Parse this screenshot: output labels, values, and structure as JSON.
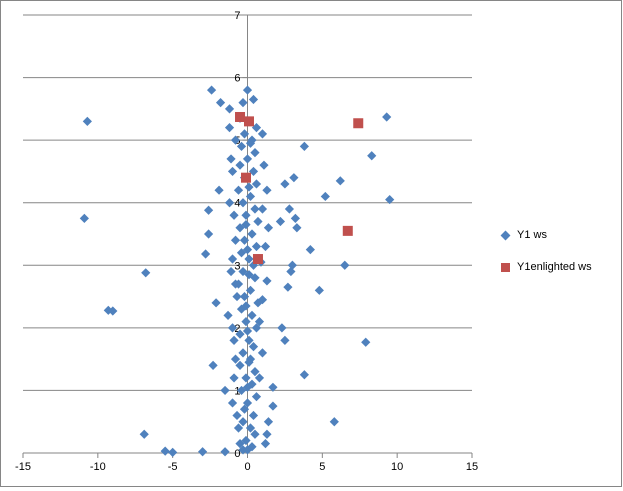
{
  "chart_data": {
    "type": "scatter",
    "title": "",
    "xlabel": "",
    "ylabel": "",
    "xlim": [
      -15,
      15
    ],
    "ylim": [
      0,
      7
    ],
    "x_ticks": [
      "-15",
      "-10",
      "-5",
      "0",
      "5",
      "10",
      "15"
    ],
    "y_ticks": [
      "0",
      "1",
      "2",
      "3",
      "4",
      "5",
      "6",
      "7"
    ],
    "grid": "horizontal major gridlines",
    "legend_position": "right",
    "series": [
      {
        "name": "Y1   ws",
        "marker": "diamond",
        "color": "#4f81bd",
        "points": [
          [
            -10.7,
            5.3
          ],
          [
            -10.9,
            3.75
          ],
          [
            -6.8,
            2.88
          ],
          [
            -9.3,
            2.28
          ],
          [
            -9.0,
            2.27
          ],
          [
            -6.9,
            0.3
          ],
          [
            -5.5,
            0.03
          ],
          [
            -5.0,
            0.01
          ],
          [
            -3.0,
            0.02
          ],
          [
            -1.5,
            0.02
          ],
          [
            -2.4,
            5.8
          ],
          [
            -2.6,
            3.88
          ],
          [
            -2.6,
            3.5
          ],
          [
            -2.8,
            3.18
          ],
          [
            -2.1,
            2.4
          ],
          [
            -2.3,
            1.4
          ],
          [
            -1.5,
            1.0
          ],
          [
            -1.9,
            4.2
          ],
          [
            -1.2,
            5.2
          ],
          [
            -1.8,
            5.6
          ],
          [
            -1.0,
            4.5
          ],
          [
            -0.9,
            3.8
          ],
          [
            -1.0,
            3.1
          ],
          [
            -0.8,
            2.7
          ],
          [
            -1.3,
            2.2
          ],
          [
            -0.9,
            1.8
          ],
          [
            -1.0,
            0.8
          ],
          [
            -0.6,
            0.4
          ],
          [
            -0.5,
            0.15
          ],
          [
            -0.3,
            0.05
          ],
          [
            3.8,
            4.9
          ],
          [
            3.1,
            4.4
          ],
          [
            2.5,
            4.3
          ],
          [
            2.8,
            3.9
          ],
          [
            3.2,
            3.75
          ],
          [
            2.2,
            3.7
          ],
          [
            3.3,
            3.6
          ],
          [
            4.2,
            3.25
          ],
          [
            3.0,
            3.0
          ],
          [
            2.9,
            2.9
          ],
          [
            2.7,
            2.65
          ],
          [
            4.8,
            2.6
          ],
          [
            2.3,
            2.0
          ],
          [
            2.5,
            1.8
          ],
          [
            3.8,
            1.25
          ],
          [
            1.7,
            1.05
          ],
          [
            1.7,
            0.75
          ],
          [
            1.4,
            0.5
          ],
          [
            1.3,
            0.3
          ],
          [
            1.2,
            0.15
          ],
          [
            6.2,
            4.35
          ],
          [
            5.2,
            4.1
          ],
          [
            6.5,
            3.0
          ],
          [
            8.3,
            4.75
          ],
          [
            9.3,
            5.37
          ],
          [
            9.5,
            4.05
          ],
          [
            7.9,
            1.77
          ],
          [
            5.8,
            0.5
          ],
          [
            0.0,
            5.8
          ],
          [
            -0.3,
            5.6
          ],
          [
            0.4,
            5.65
          ],
          [
            -0.5,
            5.35
          ],
          [
            0.6,
            5.2
          ],
          [
            -0.2,
            5.1
          ],
          [
            0.3,
            5.0
          ],
          [
            -0.4,
            4.9
          ],
          [
            0.5,
            4.8
          ],
          [
            0.0,
            4.7
          ],
          [
            -0.5,
            4.6
          ],
          [
            0.4,
            4.5
          ],
          [
            -0.2,
            4.4
          ],
          [
            0.6,
            4.3
          ],
          [
            -0.6,
            4.2
          ],
          [
            0.2,
            4.1
          ],
          [
            -0.3,
            4.0
          ],
          [
            0.5,
            3.9
          ],
          [
            -0.1,
            3.8
          ],
          [
            0.7,
            3.7
          ],
          [
            -0.5,
            3.6
          ],
          [
            0.3,
            3.5
          ],
          [
            -0.2,
            3.4
          ],
          [
            0.6,
            3.3
          ],
          [
            -0.4,
            3.2
          ],
          [
            0.1,
            3.1
          ],
          [
            0.4,
            3.0
          ],
          [
            -0.3,
            2.9
          ],
          [
            0.5,
            2.8
          ],
          [
            -0.6,
            2.7
          ],
          [
            0.2,
            2.6
          ],
          [
            -0.2,
            2.5
          ],
          [
            0.7,
            2.4
          ],
          [
            -0.4,
            2.3
          ],
          [
            0.3,
            2.2
          ],
          [
            -0.1,
            2.1
          ],
          [
            0.6,
            2.0
          ],
          [
            -0.5,
            1.9
          ],
          [
            0.1,
            1.8
          ],
          [
            0.4,
            1.7
          ],
          [
            -0.3,
            1.6
          ],
          [
            0.2,
            1.5
          ],
          [
            -0.5,
            1.4
          ],
          [
            0.5,
            1.3
          ],
          [
            -0.1,
            1.2
          ],
          [
            0.3,
            1.1
          ],
          [
            -0.4,
            1.0
          ],
          [
            0.6,
            0.9
          ],
          [
            0.0,
            0.8
          ],
          [
            -0.2,
            0.7
          ],
          [
            0.4,
            0.6
          ],
          [
            -0.3,
            0.5
          ],
          [
            0.2,
            0.4
          ],
          [
            0.5,
            0.3
          ],
          [
            -0.1,
            0.2
          ],
          [
            0.3,
            0.1
          ],
          [
            0.0,
            0.05
          ],
          [
            1.0,
            5.1
          ],
          [
            1.1,
            4.6
          ],
          [
            1.3,
            4.2
          ],
          [
            1.0,
            3.9
          ],
          [
            1.4,
            3.6
          ],
          [
            1.2,
            3.3
          ],
          [
            0.9,
            3.05
          ],
          [
            1.3,
            2.75
          ],
          [
            1.0,
            2.45
          ],
          [
            0.8,
            2.1
          ],
          [
            1.0,
            1.6
          ],
          [
            0.8,
            1.2
          ],
          [
            -1.2,
            5.5
          ],
          [
            -0.8,
            5.0
          ],
          [
            -1.1,
            4.7
          ],
          [
            -1.2,
            4.0
          ],
          [
            -0.8,
            3.4
          ],
          [
            -1.1,
            2.9
          ],
          [
            -0.7,
            2.5
          ],
          [
            -1.0,
            2.0
          ],
          [
            -0.8,
            1.5
          ],
          [
            -0.9,
            1.2
          ],
          [
            -0.7,
            0.6
          ],
          [
            0.1,
            5.3
          ],
          [
            0.2,
            4.95
          ],
          [
            0.1,
            4.25
          ],
          [
            -0.1,
            3.65
          ],
          [
            0.0,
            3.25
          ],
          [
            0.1,
            2.85
          ],
          [
            -0.1,
            2.35
          ],
          [
            0.0,
            1.95
          ],
          [
            0.1,
            1.45
          ],
          [
            0.0,
            1.05
          ]
        ]
      },
      {
        "name": "Y1enlighted   ws",
        "marker": "square",
        "color": "#c0504d",
        "points": [
          [
            -0.5,
            5.37
          ],
          [
            0.1,
            5.3
          ],
          [
            7.4,
            5.27
          ],
          [
            -0.1,
            4.4
          ],
          [
            6.7,
            3.55
          ],
          [
            0.7,
            3.1
          ]
        ]
      }
    ]
  }
}
